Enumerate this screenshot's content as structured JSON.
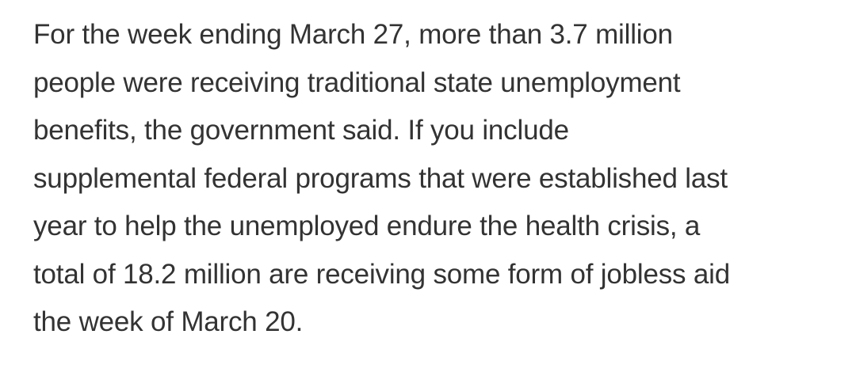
{
  "article": {
    "paragraph_lines": [
      "For the week ending March 27, more than 3.7 million",
      "people were receiving traditional state unemployment",
      "benefits, the government said. If you include",
      "supplemental federal programs that were established last",
      "year to help the unemployed endure the health crisis, a",
      "total of 18.2 million are receiving some form of jobless aid",
      "the week of March 20."
    ]
  }
}
